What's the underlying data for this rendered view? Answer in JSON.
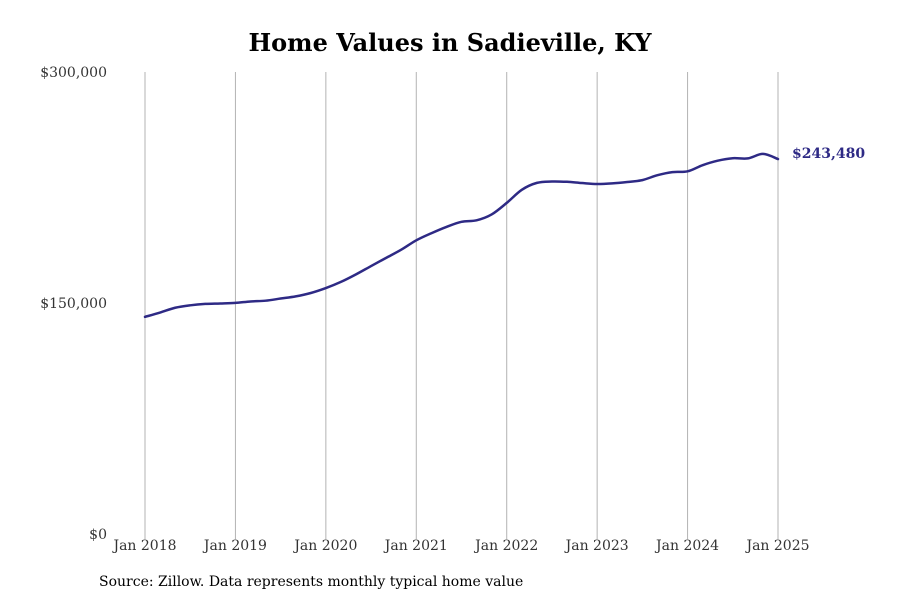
{
  "chart_data": {
    "type": "line",
    "title": "Home Values in Sadieville, KY",
    "xlabel": "",
    "ylabel": "",
    "xlim": [
      "2018-01",
      "2025-01"
    ],
    "ylim": [
      0,
      300000
    ],
    "y_ticks": [
      {
        "value": 0,
        "label": "$0"
      },
      {
        "value": 150000,
        "label": "$150,000"
      },
      {
        "value": 300000,
        "label": "$300,000"
      }
    ],
    "x_ticks": [
      {
        "value": "2018-01",
        "label": "Jan 2018"
      },
      {
        "value": "2019-01",
        "label": "Jan 2019"
      },
      {
        "value": "2020-01",
        "label": "Jan 2020"
      },
      {
        "value": "2021-01",
        "label": "Jan 2021"
      },
      {
        "value": "2022-01",
        "label": "Jan 2022"
      },
      {
        "value": "2023-01",
        "label": "Jan 2023"
      },
      {
        "value": "2024-01",
        "label": "Jan 2024"
      },
      {
        "value": "2025-01",
        "label": "Jan 2025"
      }
    ],
    "grid": "vertical",
    "series": [
      {
        "color": "#2e2a85",
        "x": [
          "2018-01",
          "2018-03",
          "2018-05",
          "2018-07",
          "2018-09",
          "2018-11",
          "2019-01",
          "2019-03",
          "2019-05",
          "2019-07",
          "2019-09",
          "2019-11",
          "2020-01",
          "2020-03",
          "2020-05",
          "2020-07",
          "2020-09",
          "2020-11",
          "2021-01",
          "2021-03",
          "2021-05",
          "2021-07",
          "2021-09",
          "2021-11",
          "2022-01",
          "2022-03",
          "2022-05",
          "2022-07",
          "2022-09",
          "2022-11",
          "2023-01",
          "2023-03",
          "2023-05",
          "2023-07",
          "2023-09",
          "2023-11",
          "2024-01",
          "2024-03",
          "2024-05",
          "2024-07",
          "2024-09",
          "2024-11",
          "2025-01"
        ],
        "values": [
          141000,
          143800,
          146900,
          148500,
          149400,
          149700,
          150100,
          151000,
          151500,
          152900,
          154300,
          156500,
          159700,
          163700,
          168600,
          174000,
          179300,
          184600,
          190700,
          195300,
          199400,
          202700,
          203700,
          207500,
          215000,
          223500,
          228000,
          228900,
          228700,
          227900,
          227300,
          227700,
          228600,
          229800,
          233000,
          235000,
          235500,
          239500,
          242400,
          244000,
          243900,
          246800,
          243480
        ]
      }
    ],
    "end_label": {
      "text": "$243,480"
    }
  },
  "source": "Source: Zillow. Data represents monthly typical home value"
}
